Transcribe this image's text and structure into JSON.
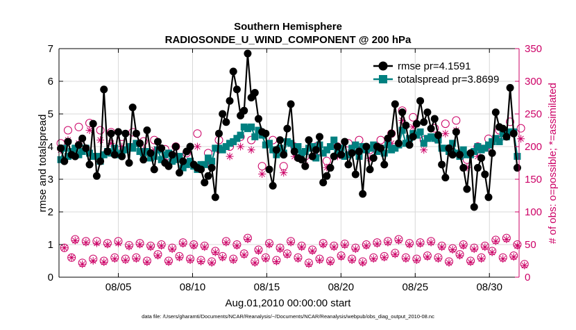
{
  "chart_data": {
    "type": "line",
    "title": "Southern Hemisphere",
    "subtitle": "RADIOSONDE_U_WIND_COMPONENT @ 200 hPa",
    "xlabel": "Aug.01,2010 00:00:00 start",
    "ylabel": "rmse and totalspread",
    "y2label": "# of obs: o=possible; *=assimilated",
    "footnote": "data file: /Users/gharamti/Documents/NCAR/Reanalysis/~/Documents/NCAR/Reanalysis/webpub/obs_diag_output_2010-08.nc",
    "xlim": [
      1,
      32
    ],
    "ylim": [
      0,
      7
    ],
    "y2lim": [
      0,
      350
    ],
    "xticks": [
      {
        "day": 5,
        "label": "08/05"
      },
      {
        "day": 10,
        "label": "08/10"
      },
      {
        "day": 15,
        "label": "08/15"
      },
      {
        "day": 20,
        "label": "08/20"
      },
      {
        "day": 25,
        "label": "08/25"
      },
      {
        "day": 30,
        "label": "08/30"
      }
    ],
    "yticks": [
      "0",
      "1",
      "2",
      "3",
      "4",
      "5",
      "6",
      "7"
    ],
    "y2ticks": [
      "0",
      "50",
      "100",
      "150",
      "200",
      "250",
      "300",
      "350"
    ],
    "legend": {
      "position": "top-right",
      "entries": [
        "rmse pr=4.1591",
        "totalspread pr=3.8699"
      ]
    },
    "colors": {
      "rmse": "#000000",
      "totalspread": "#008080",
      "obs": "#cc0066",
      "axis": "#000000",
      "axis_right": "#cc0066"
    },
    "series": [
      {
        "name": "rmse pr=4.1591",
        "axis": "left",
        "marker": "circle",
        "values": [
          3.95,
          3.55,
          4.15,
          3.75,
          3.7,
          4.05,
          4.25,
          3.95,
          3.45,
          4.7,
          3.1,
          3.55,
          5.75,
          3.85,
          4.4,
          3.75,
          4.45,
          3.7,
          4.4,
          3.5,
          5.2,
          4.4,
          4.1,
          3.6,
          4.5,
          3.8,
          3.3,
          4.15,
          3.95,
          3.5,
          3.4,
          3.75,
          4.0,
          3.2,
          3.55,
          3.85,
          4.0,
          3.45,
          3.35,
          3.3,
          2.9,
          3.1,
          3.35,
          2.45,
          4.4,
          5.0,
          4.75,
          5.4,
          6.3,
          5.75,
          4.95,
          5.1,
          6.85,
          5.5,
          5.65,
          4.85,
          4.45,
          4.4,
          3.3,
          2.8,
          3.9,
          4.2,
          3.75,
          4.55,
          5.3,
          3.85,
          3.65,
          3.6,
          3.4,
          4.2,
          3.7,
          3.9,
          4.3,
          2.9,
          3.1,
          3.35,
          3.7,
          4.0,
          3.75,
          4.15,
          3.45,
          3.8,
          3.15,
          3.85,
          2.55,
          4.0,
          3.3,
          3.65,
          4.0,
          3.95,
          3.45,
          4.25,
          4.4,
          5.3,
          4.1,
          5.05,
          4.65,
          4.05,
          4.3,
          4.7,
          5.4,
          4.75,
          5.05,
          4.55,
          4.85,
          4.35,
          3.45,
          3.05,
          3.95,
          3.75,
          4.45,
          3.75,
          3.35,
          2.7,
          3.8,
          2.15,
          3.35,
          3.65,
          3.15,
          2.45,
          3.8,
          5.05,
          4.6,
          4.55,
          4.3,
          5.8,
          4.4,
          3.35
        ]
      },
      {
        "name": "totalspread pr=3.8699",
        "axis": "left",
        "marker": "square",
        "values": [
          3.6,
          3.95,
          3.7,
          3.85,
          3.95,
          3.75,
          3.85,
          3.95,
          3.8,
          3.7,
          3.7,
          3.55,
          3.75,
          3.85,
          3.8,
          3.95,
          3.75,
          3.8,
          3.9,
          4.0,
          3.95,
          4.1,
          3.85,
          3.8,
          3.85,
          3.65,
          3.7,
          3.9,
          3.6,
          3.75,
          3.8,
          3.55,
          3.6,
          3.7,
          3.35,
          3.45,
          3.55,
          3.4,
          3.3,
          3.45,
          3.45,
          3.65,
          3.55,
          3.95,
          3.95,
          3.9,
          4.0,
          4.1,
          4.15,
          4.25,
          4.35,
          4.6,
          4.55,
          4.6,
          4.3,
          4.5,
          4.35,
          4.05,
          4.1,
          3.9,
          3.75,
          3.95,
          3.8,
          4.15,
          4.1,
          3.95,
          4.0,
          3.8,
          3.85,
          3.95,
          4.0,
          3.65,
          4.05,
          3.8,
          3.9,
          4.0,
          4.2,
          3.85,
          3.95,
          3.7,
          3.75,
          3.95,
          4.05,
          3.7,
          4.0,
          3.9,
          3.95,
          4.05,
          3.85,
          3.95,
          3.8,
          4.05,
          3.9,
          3.95,
          4.05,
          4.5,
          4.1,
          4.25,
          4.4,
          4.35,
          4.45,
          4.1,
          4.25,
          4.3,
          4.25,
          4.2,
          3.95,
          3.95,
          3.85,
          4.1,
          3.8,
          3.7,
          3.9,
          3.75,
          3.75,
          3.85,
          4.0,
          3.9,
          3.95,
          4.05,
          4.15,
          4.25,
          4.15,
          4.4,
          4.3,
          4.45,
          4.45,
          3.7
        ]
      },
      {
        "name": "possible",
        "axis": "right",
        "marker": "circle-open",
        "values": [
          205,
          45,
          225,
          30,
          58,
          230,
          22,
          55,
          236,
          28,
          55,
          225,
          25,
          52,
          222,
          30,
          55,
          215,
          28,
          49,
          222,
          30,
          52,
          208,
          25,
          48,
          210,
          35,
          50,
          196,
          25,
          45,
          200,
          32,
          53,
          190,
          28,
          50,
          220,
          26,
          48,
          190,
          24,
          40,
          210,
          32,
          55,
          200,
          28,
          50,
          215,
          36,
          60,
          210,
          24,
          42,
          170,
          30,
          52,
          210,
          26,
          45,
          170,
          36,
          55,
          200,
          30,
          48,
          185,
          22,
          42,
          200,
          28,
          52,
          178,
          25,
          48,
          200,
          33,
          51,
          205,
          28,
          45,
          210,
          24,
          50,
          195,
          30,
          53,
          210,
          32,
          55,
          220,
          37,
          58,
          255,
          30,
          52,
          245,
          28,
          53,
          210,
          33,
          55,
          228,
          30,
          48,
          235,
          24,
          44,
          240,
          35,
          50,
          180,
          25,
          45,
          200,
          30,
          48,
          212,
          40,
          57,
          225,
          30,
          60,
          238,
          33,
          50,
          228,
          20
        ]
      },
      {
        "name": "assimilated",
        "axis": "right",
        "marker": "star",
        "values": [
          195,
          45,
          210,
          30,
          56,
          205,
          20,
          53,
          225,
          25,
          52,
          210,
          23,
          50,
          205,
          28,
          52,
          200,
          26,
          47,
          200,
          28,
          50,
          195,
          23,
          46,
          195,
          33,
          48,
          180,
          23,
          43,
          185,
          30,
          51,
          175,
          26,
          48,
          200,
          24,
          46,
          175,
          22,
          38,
          195,
          30,
          53,
          185,
          26,
          48,
          200,
          34,
          58,
          195,
          22,
          40,
          158,
          28,
          50,
          195,
          24,
          43,
          160,
          34,
          53,
          185,
          28,
          46,
          172,
          20,
          40,
          188,
          26,
          50,
          168,
          23,
          46,
          185,
          31,
          49,
          190,
          26,
          43,
          195,
          22,
          48,
          182,
          28,
          51,
          195,
          30,
          53,
          205,
          35,
          56,
          240,
          28,
          50,
          230,
          26,
          51,
          195,
          31,
          53,
          212,
          28,
          46,
          220,
          22,
          42,
          225,
          33,
          48,
          168,
          23,
          43,
          185,
          28,
          46,
          198,
          38,
          55,
          210,
          28,
          58,
          222,
          31,
          48,
          212,
          18
        ]
      }
    ]
  }
}
